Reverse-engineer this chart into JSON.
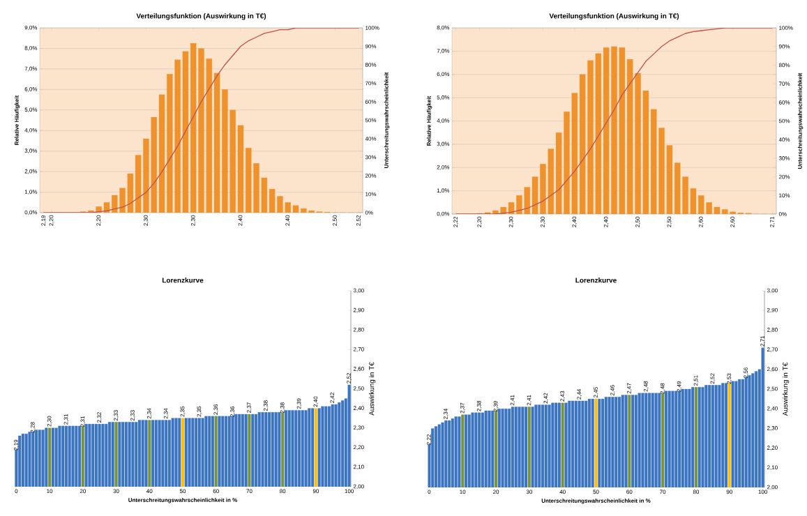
{
  "chart_data": [
    {
      "type": "bar",
      "title": "Verteilungsfunktion (Auswirkung in T€)",
      "ylabel": "Relative Häufigkeit",
      "y2label": "Unterschreitungswahrscheinlichkeit",
      "categories": [
        "2,19",
        "2,20",
        null,
        null,
        null,
        null,
        null,
        "2,20",
        null,
        null,
        null,
        null,
        null,
        "2,30",
        null,
        null,
        null,
        null,
        null,
        "2,30",
        null,
        null,
        null,
        null,
        null,
        "2,40",
        null,
        null,
        null,
        null,
        null,
        "2,40",
        null,
        null,
        null,
        null,
        null,
        "2,50",
        null,
        null,
        "2,52"
      ],
      "series": [
        {
          "type": "bar",
          "color": "#f0922b",
          "values": [
            0,
            0,
            0,
            0,
            0,
            0.05,
            0.1,
            0.3,
            0.5,
            0.85,
            1.2,
            1.9,
            2.8,
            3.6,
            4.65,
            5.75,
            6.75,
            7.45,
            7.85,
            8.25,
            8.0,
            7.5,
            6.8,
            6.0,
            5.0,
            4.25,
            3.15,
            2.4,
            1.7,
            1.15,
            0.8,
            0.5,
            0.35,
            0.2,
            0.1,
            0.05,
            0.03,
            0,
            0,
            0,
            0
          ]
        },
        {
          "type": "line",
          "axis": "y2",
          "color": "#c0504d",
          "values": [
            0,
            0,
            0,
            0,
            0,
            0,
            0,
            0.5,
            1,
            2,
            3,
            5,
            8,
            11,
            16,
            22,
            29,
            36,
            44,
            52,
            60,
            67,
            74,
            80,
            85,
            90,
            93,
            95,
            97,
            98,
            99,
            99,
            100,
            100,
            100,
            100,
            100,
            100,
            100,
            100,
            100
          ]
        }
      ],
      "ylim": [
        0,
        9
      ],
      "yticks": [
        {
          "value": 0,
          "label": "0,0%"
        },
        {
          "value": 1,
          "label": "1,0%"
        },
        {
          "value": 2,
          "label": "2,0%"
        },
        {
          "value": 3,
          "label": "3,0%"
        },
        {
          "value": 4,
          "label": "4,0%"
        },
        {
          "value": 5,
          "label": "5,0%"
        },
        {
          "value": 6,
          "label": "6,0%"
        },
        {
          "value": 7,
          "label": "7,0%"
        },
        {
          "value": 8,
          "label": "8,0%"
        },
        {
          "value": 9,
          "label": "9,0%"
        }
      ],
      "y2lim": [
        0,
        100
      ],
      "y2ticks": [
        {
          "value": 0,
          "label": "0%"
        },
        {
          "value": 10,
          "label": "10%"
        },
        {
          "value": 20,
          "label": "20%"
        },
        {
          "value": 30,
          "label": "30%"
        },
        {
          "value": 40,
          "label": "40%"
        },
        {
          "value": 50,
          "label": "50%"
        },
        {
          "value": 60,
          "label": "60%"
        },
        {
          "value": 70,
          "label": "70%"
        },
        {
          "value": 80,
          "label": "80%"
        },
        {
          "value": 90,
          "label": "90%"
        },
        {
          "value": 100,
          "label": "100%"
        }
      ],
      "grid": "y"
    },
    {
      "type": "bar",
      "title": "Verteilungsfunktion (Auswirkung in T€)",
      "ylabel": "Relative Häufigkeit",
      "y2label": "Unterschreitungswahrscheinlichkeit",
      "categories": [
        "2,22",
        null,
        null,
        "2,20",
        null,
        null,
        null,
        "2,30",
        null,
        null,
        null,
        "2,30",
        null,
        null,
        null,
        "2,40",
        null,
        null,
        null,
        "2,40",
        null,
        null,
        null,
        "2,50",
        null,
        null,
        null,
        "2,50",
        null,
        null,
        null,
        "2,60",
        null,
        null,
        null,
        "2,60",
        null,
        null,
        null,
        null,
        "2,71"
      ],
      "series": [
        {
          "type": "bar",
          "color": "#f0922b",
          "values": [
            0,
            0,
            0,
            0.03,
            0.07,
            0.15,
            0.3,
            0.5,
            0.8,
            1.15,
            1.6,
            2.15,
            2.8,
            3.5,
            4.4,
            5.2,
            6.0,
            6.6,
            6.9,
            7.15,
            7.2,
            7.15,
            6.65,
            6.05,
            5.3,
            4.5,
            3.7,
            2.95,
            2.2,
            1.6,
            1.1,
            0.8,
            0.5,
            0.3,
            0.2,
            0.1,
            0.05,
            0.04,
            0,
            0,
            0
          ]
        },
        {
          "type": "line",
          "axis": "y2",
          "color": "#c0504d",
          "values": [
            0,
            0,
            0,
            0,
            0,
            0,
            0.5,
            1,
            2,
            3,
            5,
            7,
            10,
            13,
            18,
            23,
            29,
            35,
            42,
            49,
            56,
            64,
            70,
            76,
            82,
            86,
            90,
            93,
            95,
            97,
            98,
            98.5,
            99,
            99.5,
            100,
            100,
            100,
            100,
            100,
            100,
            100
          ]
        }
      ],
      "ylim": [
        0,
        8
      ],
      "yticks": [
        {
          "value": 0,
          "label": "0,0%"
        },
        {
          "value": 1,
          "label": "1,0%"
        },
        {
          "value": 2,
          "label": "2,0%"
        },
        {
          "value": 3,
          "label": "3,0%"
        },
        {
          "value": 4,
          "label": "4,0%"
        },
        {
          "value": 5,
          "label": "5,0%"
        },
        {
          "value": 6,
          "label": "6,0%"
        },
        {
          "value": 7,
          "label": "7,0%"
        },
        {
          "value": 8,
          "label": "8,0%"
        }
      ],
      "y2lim": [
        0,
        100
      ],
      "y2ticks": [
        {
          "value": 0,
          "label": "0%"
        },
        {
          "value": 10,
          "label": "10%"
        },
        {
          "value": 20,
          "label": "20%"
        },
        {
          "value": 30,
          "label": "30%"
        },
        {
          "value": 40,
          "label": "40%"
        },
        {
          "value": 50,
          "label": "50%"
        },
        {
          "value": 60,
          "label": "60%"
        },
        {
          "value": 70,
          "label": "70%"
        },
        {
          "value": 80,
          "label": "80%"
        },
        {
          "value": 90,
          "label": "90%"
        },
        {
          "value": 100,
          "label": "100%"
        }
      ],
      "grid": "y"
    },
    {
      "type": "bar",
      "title": "Lorenzkurve",
      "xlabel": "Unterschreitungswahrscheinlichkeit in %",
      "ylabel": "Auswirkung in T€",
      "x": [
        0,
        1,
        2,
        3,
        4,
        5,
        6,
        7,
        8,
        9,
        10,
        11,
        12,
        13,
        14,
        15,
        16,
        17,
        18,
        19,
        20,
        21,
        22,
        23,
        24,
        25,
        26,
        27,
        28,
        29,
        30,
        31,
        32,
        33,
        34,
        35,
        36,
        37,
        38,
        39,
        40,
        41,
        42,
        43,
        44,
        45,
        46,
        47,
        48,
        49,
        50,
        51,
        52,
        53,
        54,
        55,
        56,
        57,
        58,
        59,
        60,
        61,
        62,
        63,
        64,
        65,
        66,
        67,
        68,
        69,
        70,
        71,
        72,
        73,
        74,
        75,
        76,
        77,
        78,
        79,
        80,
        81,
        82,
        83,
        84,
        85,
        86,
        87,
        88,
        89,
        90,
        91,
        92,
        93,
        94,
        95,
        96,
        97,
        98,
        99,
        100
      ],
      "values": [
        2.19,
        2.26,
        2.27,
        2.27,
        2.28,
        2.28,
        2.29,
        2.29,
        2.29,
        2.3,
        2.3,
        2.3,
        2.3,
        2.31,
        2.31,
        2.31,
        2.31,
        2.31,
        2.31,
        2.31,
        2.31,
        2.32,
        2.32,
        2.32,
        2.32,
        2.32,
        2.32,
        2.32,
        2.33,
        2.33,
        2.33,
        2.33,
        2.33,
        2.33,
        2.33,
        2.33,
        2.33,
        2.34,
        2.34,
        2.34,
        2.34,
        2.34,
        2.34,
        2.34,
        2.34,
        2.34,
        2.34,
        2.35,
        2.35,
        2.35,
        2.35,
        2.35,
        2.35,
        2.35,
        2.35,
        2.35,
        2.35,
        2.36,
        2.36,
        2.36,
        2.36,
        2.36,
        2.36,
        2.36,
        2.36,
        2.36,
        2.37,
        2.37,
        2.37,
        2.37,
        2.37,
        2.37,
        2.37,
        2.38,
        2.38,
        2.38,
        2.38,
        2.38,
        2.38,
        2.38,
        2.38,
        2.39,
        2.39,
        2.39,
        2.39,
        2.39,
        2.39,
        2.39,
        2.4,
        2.4,
        2.4,
        2.4,
        2.41,
        2.41,
        2.41,
        2.42,
        2.42,
        2.43,
        2.44,
        2.45,
        2.52
      ],
      "colors": [
        "#3b75c2",
        "#3b75c2",
        "#3b75c2",
        "#3b75c2",
        "#3b75c2",
        "#3b75c2",
        "#3b75c2",
        "#3b75c2",
        "#3b75c2",
        "#3b75c2",
        "#77933c",
        "#3b75c2",
        "#3b75c2",
        "#3b75c2",
        "#3b75c2",
        "#3b75c2",
        "#3b75c2",
        "#3b75c2",
        "#3b75c2",
        "#3b75c2",
        "#77933c",
        "#3b75c2",
        "#3b75c2",
        "#3b75c2",
        "#3b75c2",
        "#3b75c2",
        "#3b75c2",
        "#3b75c2",
        "#3b75c2",
        "#3b75c2",
        "#77933c",
        "#3b75c2",
        "#3b75c2",
        "#3b75c2",
        "#3b75c2",
        "#3b75c2",
        "#3b75c2",
        "#3b75c2",
        "#3b75c2",
        "#3b75c2",
        "#77933c",
        "#3b75c2",
        "#3b75c2",
        "#3b75c2",
        "#3b75c2",
        "#3b75c2",
        "#3b75c2",
        "#3b75c2",
        "#3b75c2",
        "#3b75c2",
        "#ffc000",
        "#3b75c2",
        "#3b75c2",
        "#3b75c2",
        "#3b75c2",
        "#3b75c2",
        "#3b75c2",
        "#3b75c2",
        "#3b75c2",
        "#3b75c2",
        "#77933c",
        "#3b75c2",
        "#3b75c2",
        "#3b75c2",
        "#3b75c2",
        "#3b75c2",
        "#3b75c2",
        "#3b75c2",
        "#3b75c2",
        "#3b75c2",
        "#77933c",
        "#3b75c2",
        "#3b75c2",
        "#3b75c2",
        "#3b75c2",
        "#3b75c2",
        "#3b75c2",
        "#3b75c2",
        "#3b75c2",
        "#3b75c2",
        "#77933c",
        "#3b75c2",
        "#3b75c2",
        "#3b75c2",
        "#3b75c2",
        "#3b75c2",
        "#3b75c2",
        "#3b75c2",
        "#3b75c2",
        "#3b75c2",
        "#ffc000",
        "#3b75c2",
        "#3b75c2",
        "#3b75c2",
        "#3b75c2",
        "#3b75c2",
        "#3b75c2",
        "#3b75c2",
        "#3b75c2",
        "#3b75c2",
        "#3b75c2"
      ],
      "value_labels": [
        "2,19",
        null,
        null,
        null,
        null,
        "2,28",
        null,
        null,
        null,
        null,
        "2,30",
        null,
        null,
        null,
        null,
        "2,31",
        null,
        null,
        null,
        null,
        "2,31",
        null,
        null,
        null,
        null,
        "2,32",
        null,
        null,
        null,
        null,
        "2,33",
        null,
        null,
        null,
        null,
        "2,33",
        null,
        null,
        null,
        null,
        "2,34",
        null,
        null,
        null,
        null,
        "2,34",
        null,
        null,
        null,
        null,
        "2,35",
        null,
        null,
        null,
        null,
        "2,35",
        null,
        null,
        null,
        null,
        "2,36",
        null,
        null,
        null,
        null,
        "2,36",
        null,
        null,
        null,
        null,
        "2,37",
        null,
        null,
        null,
        null,
        "2,38",
        null,
        null,
        null,
        null,
        "2,38",
        null,
        null,
        null,
        null,
        "2,39",
        null,
        null,
        null,
        null,
        "2,40",
        null,
        null,
        null,
        null,
        "2,42",
        null,
        null,
        null,
        null,
        "2,52"
      ],
      "xlim": [
        -0.5,
        100.5
      ],
      "xticks": [
        0,
        10,
        20,
        30,
        40,
        50,
        60,
        70,
        80,
        90,
        100
      ],
      "ylim": [
        2,
        3
      ],
      "yticks": [
        {
          "value": 2,
          "label": "2,00"
        },
        {
          "value": 2.1,
          "label": "2,10"
        },
        {
          "value": 2.2,
          "label": "2,20"
        },
        {
          "value": 2.3,
          "label": "2,30"
        },
        {
          "value": 2.4,
          "label": "2,40"
        },
        {
          "value": 2.5,
          "label": "2,50"
        },
        {
          "value": 2.6,
          "label": "2,60"
        },
        {
          "value": 2.7,
          "label": "2,70"
        },
        {
          "value": 2.8,
          "label": "2,80"
        },
        {
          "value": 2.9,
          "label": "2,90"
        },
        {
          "value": 3,
          "label": "3,00"
        }
      ]
    },
    {
      "type": "bar",
      "title": "Lorenzkurve",
      "xlabel": "Unterschreitungswahrscheinlichkeit in %",
      "ylabel": "Auswirkung in T€",
      "x": [
        0,
        1,
        2,
        3,
        4,
        5,
        6,
        7,
        8,
        9,
        10,
        11,
        12,
        13,
        14,
        15,
        16,
        17,
        18,
        19,
        20,
        21,
        22,
        23,
        24,
        25,
        26,
        27,
        28,
        29,
        30,
        31,
        32,
        33,
        34,
        35,
        36,
        37,
        38,
        39,
        40,
        41,
        42,
        43,
        44,
        45,
        46,
        47,
        48,
        49,
        50,
        51,
        52,
        53,
        54,
        55,
        56,
        57,
        58,
        59,
        60,
        61,
        62,
        63,
        64,
        65,
        66,
        67,
        68,
        69,
        70,
        71,
        72,
        73,
        74,
        75,
        76,
        77,
        78,
        79,
        80,
        81,
        82,
        83,
        84,
        85,
        86,
        87,
        88,
        89,
        90,
        91,
        92,
        93,
        94,
        95,
        96,
        97,
        98,
        99,
        100
      ],
      "values": [
        2.22,
        2.3,
        2.31,
        2.32,
        2.33,
        2.34,
        2.34,
        2.35,
        2.36,
        2.36,
        2.37,
        2.37,
        2.37,
        2.38,
        2.38,
        2.38,
        2.38,
        2.39,
        2.39,
        2.39,
        2.39,
        2.4,
        2.4,
        2.4,
        2.4,
        2.41,
        2.41,
        2.41,
        2.41,
        2.41,
        2.41,
        2.41,
        2.42,
        2.42,
        2.42,
        2.42,
        2.42,
        2.43,
        2.43,
        2.43,
        2.43,
        2.43,
        2.44,
        2.44,
        2.44,
        2.44,
        2.44,
        2.44,
        2.45,
        2.45,
        2.45,
        2.45,
        2.45,
        2.46,
        2.46,
        2.46,
        2.46,
        2.46,
        2.47,
        2.47,
        2.47,
        2.47,
        2.47,
        2.48,
        2.48,
        2.48,
        2.48,
        2.48,
        2.48,
        2.48,
        2.48,
        2.49,
        2.49,
        2.49,
        2.49,
        2.49,
        2.5,
        2.5,
        2.5,
        2.51,
        2.51,
        2.51,
        2.51,
        2.52,
        2.52,
        2.52,
        2.52,
        2.52,
        2.53,
        2.53,
        2.53,
        2.54,
        2.54,
        2.55,
        2.55,
        2.56,
        2.57,
        2.58,
        2.59,
        2.6,
        2.71
      ],
      "colors": [
        "#3b75c2",
        "#3b75c2",
        "#3b75c2",
        "#3b75c2",
        "#3b75c2",
        "#3b75c2",
        "#3b75c2",
        "#3b75c2",
        "#3b75c2",
        "#3b75c2",
        "#77933c",
        "#3b75c2",
        "#3b75c2",
        "#3b75c2",
        "#3b75c2",
        "#3b75c2",
        "#3b75c2",
        "#3b75c2",
        "#3b75c2",
        "#3b75c2",
        "#77933c",
        "#3b75c2",
        "#3b75c2",
        "#3b75c2",
        "#3b75c2",
        "#3b75c2",
        "#3b75c2",
        "#3b75c2",
        "#3b75c2",
        "#3b75c2",
        "#77933c",
        "#3b75c2",
        "#3b75c2",
        "#3b75c2",
        "#3b75c2",
        "#3b75c2",
        "#3b75c2",
        "#3b75c2",
        "#3b75c2",
        "#3b75c2",
        "#77933c",
        "#3b75c2",
        "#3b75c2",
        "#3b75c2",
        "#3b75c2",
        "#3b75c2",
        "#3b75c2",
        "#3b75c2",
        "#3b75c2",
        "#3b75c2",
        "#ffc000",
        "#3b75c2",
        "#3b75c2",
        "#3b75c2",
        "#3b75c2",
        "#3b75c2",
        "#3b75c2",
        "#3b75c2",
        "#3b75c2",
        "#3b75c2",
        "#77933c",
        "#3b75c2",
        "#3b75c2",
        "#3b75c2",
        "#3b75c2",
        "#3b75c2",
        "#3b75c2",
        "#3b75c2",
        "#3b75c2",
        "#3b75c2",
        "#77933c",
        "#3b75c2",
        "#3b75c2",
        "#3b75c2",
        "#3b75c2",
        "#3b75c2",
        "#3b75c2",
        "#3b75c2",
        "#3b75c2",
        "#3b75c2",
        "#77933c",
        "#3b75c2",
        "#3b75c2",
        "#3b75c2",
        "#3b75c2",
        "#3b75c2",
        "#3b75c2",
        "#3b75c2",
        "#3b75c2",
        "#3b75c2",
        "#ffc000",
        "#3b75c2",
        "#3b75c2",
        "#3b75c2",
        "#3b75c2",
        "#3b75c2",
        "#3b75c2",
        "#3b75c2",
        "#3b75c2",
        "#3b75c2",
        "#3b75c2"
      ],
      "value_labels": [
        "2,22",
        null,
        null,
        null,
        null,
        "2,34",
        null,
        null,
        null,
        null,
        "2,37",
        null,
        null,
        null,
        null,
        "2,38",
        null,
        null,
        null,
        null,
        "2,39",
        null,
        null,
        null,
        null,
        "2,41",
        null,
        null,
        null,
        null,
        "2,41",
        null,
        null,
        null,
        null,
        "2,42",
        null,
        null,
        null,
        null,
        "2,43",
        null,
        null,
        null,
        null,
        "2,44",
        null,
        null,
        null,
        null,
        "2,45",
        null,
        null,
        null,
        null,
        "2,46",
        null,
        null,
        null,
        null,
        "2,47",
        null,
        null,
        null,
        null,
        "2,48",
        null,
        null,
        null,
        null,
        "2,48",
        null,
        null,
        null,
        null,
        "2,49",
        null,
        null,
        null,
        null,
        "2,51",
        null,
        null,
        null,
        null,
        "2,52",
        null,
        null,
        null,
        null,
        "2,53",
        null,
        null,
        null,
        null,
        "2,56",
        null,
        null,
        null,
        null,
        "2,71"
      ],
      "xlim": [
        -0.5,
        100.5
      ],
      "xticks": [
        0,
        10,
        20,
        30,
        40,
        50,
        60,
        70,
        80,
        90,
        100
      ],
      "ylim": [
        2,
        3
      ],
      "yticks": [
        {
          "value": 2,
          "label": "2,00"
        },
        {
          "value": 2.1,
          "label": "2,10"
        },
        {
          "value": 2.2,
          "label": "2,20"
        },
        {
          "value": 2.3,
          "label": "2,30"
        },
        {
          "value": 2.4,
          "label": "2,40"
        },
        {
          "value": 2.5,
          "label": "2,50"
        },
        {
          "value": 2.6,
          "label": "2,60"
        },
        {
          "value": 2.7,
          "label": "2,70"
        },
        {
          "value": 2.8,
          "label": "2,80"
        },
        {
          "value": 2.9,
          "label": "2,90"
        },
        {
          "value": 3,
          "label": "3,00"
        }
      ]
    }
  ]
}
